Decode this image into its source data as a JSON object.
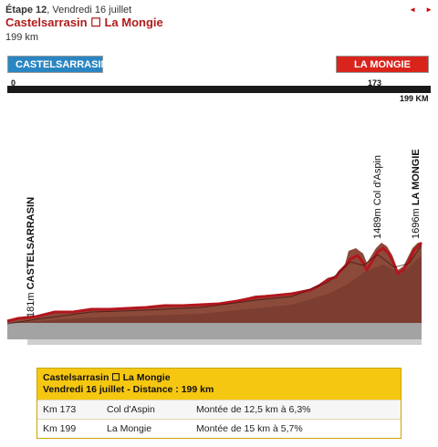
{
  "header": {
    "stage": "Étape 12",
    "date": ", Vendredi 16 juillet",
    "route": "Castelsarrasin ☐ La Mongie",
    "distance": "199 km",
    "prev_arrow": "◄",
    "next_arrow": "►"
  },
  "badges": {
    "start": "CASTELSARRASIN",
    "end": "LA MONGIE"
  },
  "scale": {
    "start": "0",
    "mid": "173",
    "end": "199 KM"
  },
  "profile_labels": {
    "start_alt": "181m",
    "start_name": "CASTELSARRASIN",
    "climb1_alt": "1489m",
    "climb1_name": "Col d'Aspin",
    "finish_alt": "1696m",
    "finish_name": "LA MONGIE"
  },
  "colors": {
    "profile_fill": "#8c4a3a",
    "profile_line": "#b3161e",
    "base": "#9a9a9a",
    "banner": "#f6c711"
  },
  "table": {
    "title": "Castelsarrasin ☐ La Mongie",
    "subtitle": "Vendredi 16 juillet - Distance : 199 km",
    "rows": [
      {
        "km": "Km 173",
        "name": "Col d'Aspin",
        "climb": "Montée de 12,5 km à 6,3%"
      },
      {
        "km": "Km 199",
        "name": "La Mongie",
        "climb": "Montée de 15 km à 5,7%"
      }
    ]
  }
}
